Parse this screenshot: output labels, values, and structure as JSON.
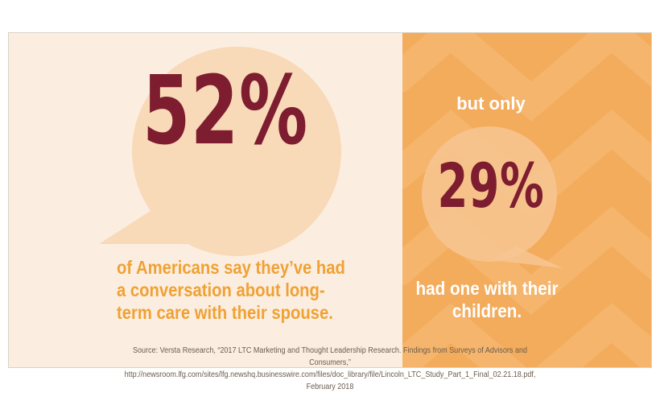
{
  "stats": {
    "primary": {
      "value": "52%",
      "caption": "of Americans say they’ve had a conversation about long-term care with their spouse."
    },
    "secondary": {
      "lead": "but only",
      "value": "29%",
      "caption": "had one with their children."
    }
  },
  "source": {
    "line1": "Source: Versta Research, “2017 LTC Marketing and Thought Leadership Research. Findings from Surveys of Advisors and Consumers,”",
    "line2": "http://newsroom.lfg.com/sites/lfg.newshq.businesswire.com/files/doc_library/file/Lincoln_LTC_Study_Part_1_Final_02.21.18.pdf, February 2018"
  },
  "colors": {
    "left_background": "#fbeee1",
    "right_background": "#f3ab5c",
    "bubble_light": "#f8d9b8",
    "stat_text": "#7d1d2f",
    "caption_orange": "#f0a134",
    "caption_white": "#ffffff"
  }
}
